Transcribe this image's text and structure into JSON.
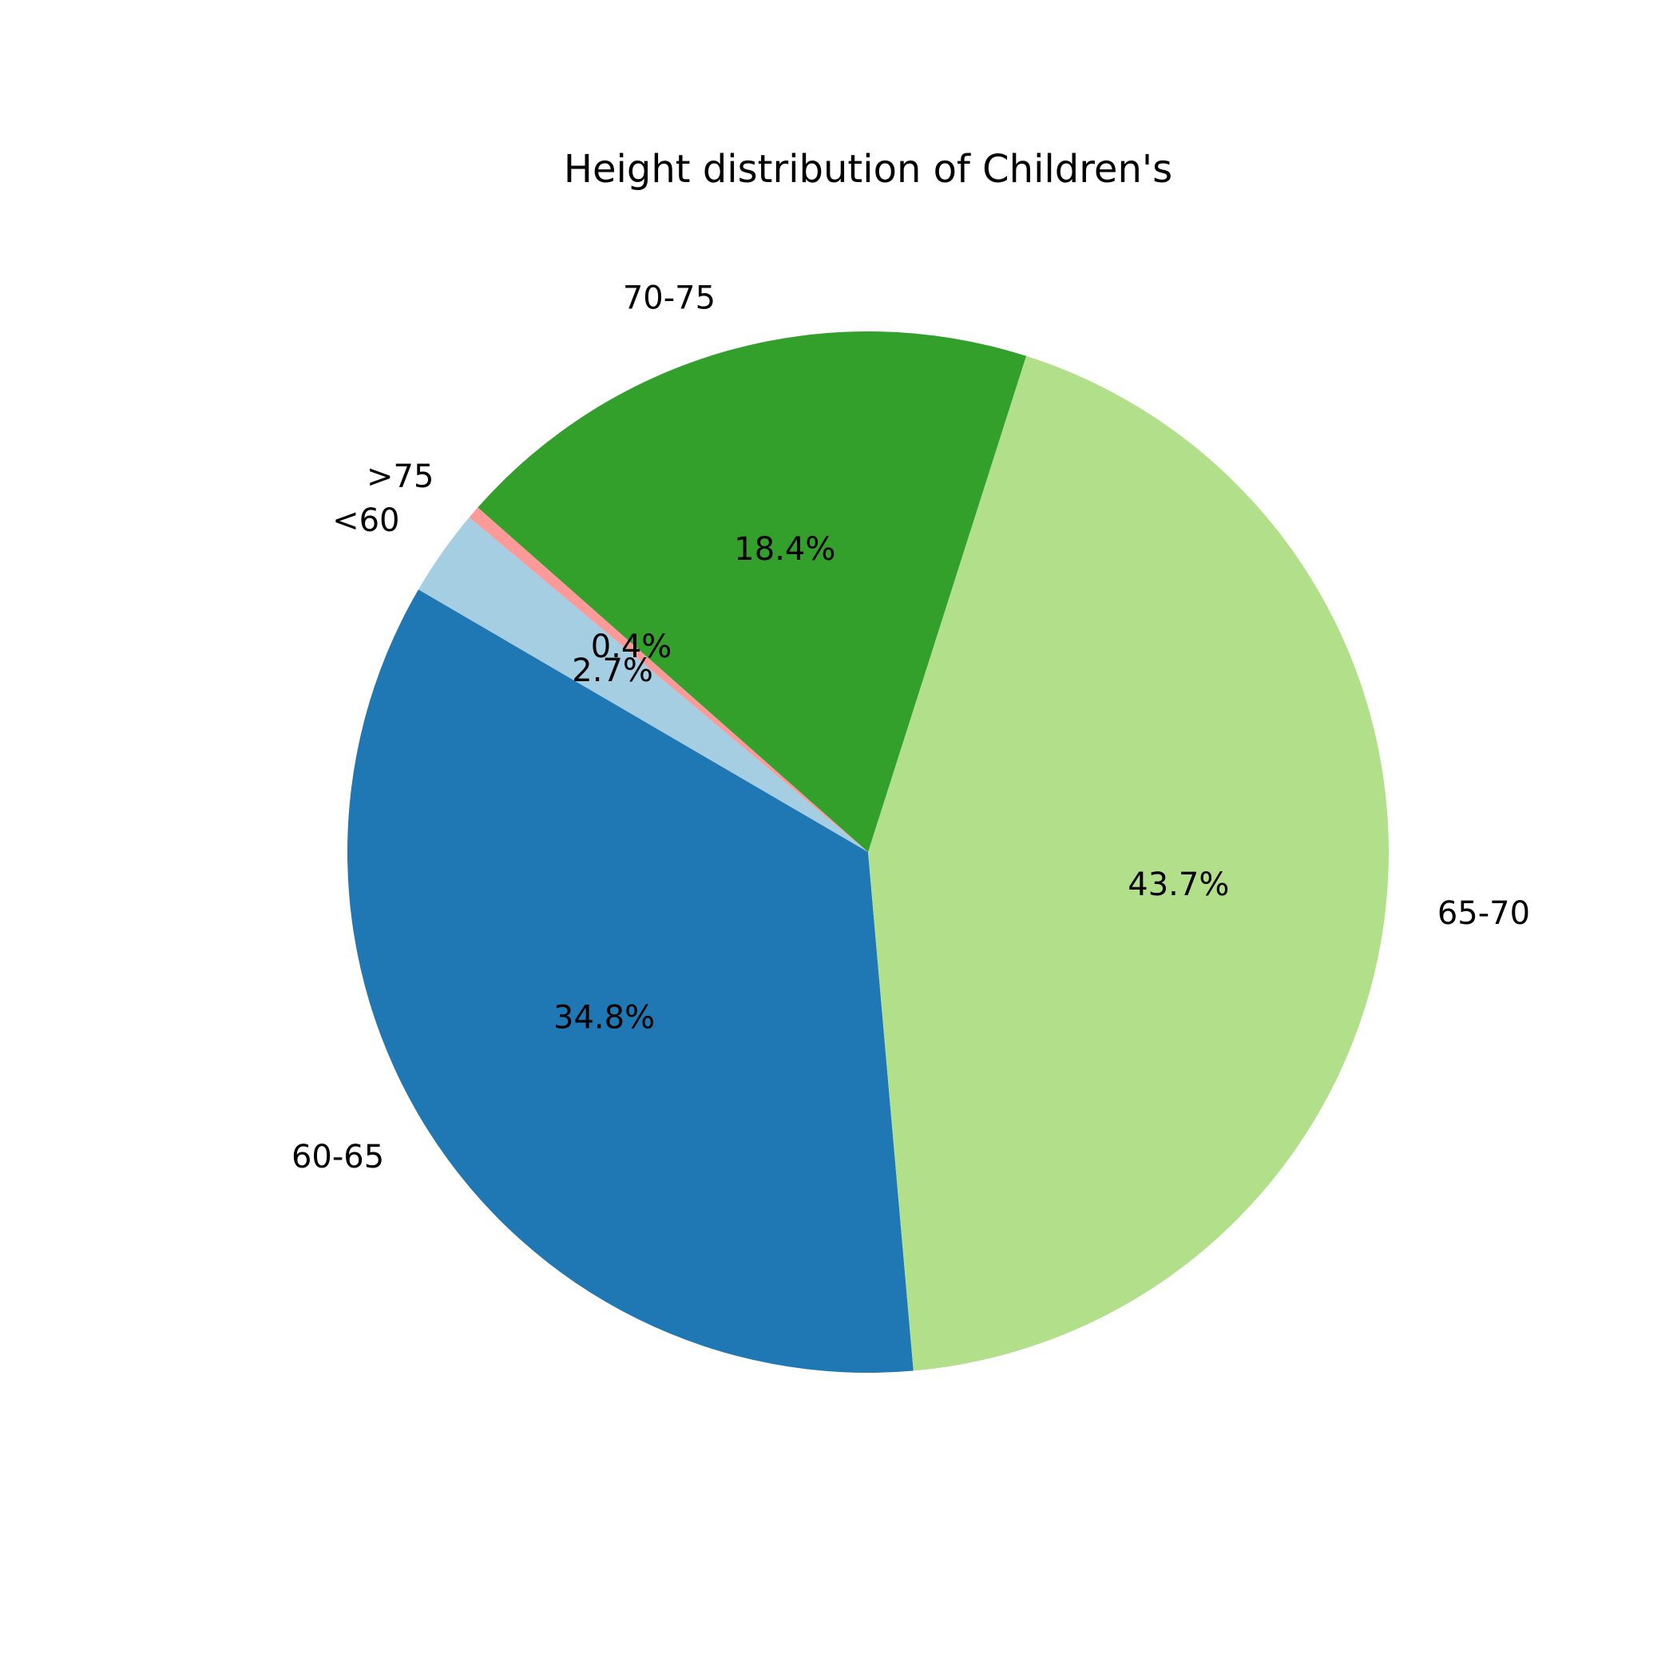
{
  "chart_data": {
    "type": "pie",
    "title": "Height distribution of Children's",
    "slices": [
      {
        "label": "<60",
        "value": 2.7,
        "pct_label": "2.7%",
        "color": "#a6cee3"
      },
      {
        "label": "60-65",
        "value": 34.8,
        "pct_label": "34.8%",
        "color": "#1f78b4"
      },
      {
        "label": "65-70",
        "value": 43.7,
        "pct_label": "43.7%",
        "color": "#b2df8a"
      },
      {
        "label": "70-75",
        "value": 18.4,
        "pct_label": "18.4%",
        "color": "#33a02c"
      },
      {
        "label": ">75",
        "value": 0.4,
        "pct_label": "0.4%",
        "color": "#fb9a99"
      }
    ],
    "start_angle_deg": 140,
    "direction": "counterclockwise",
    "legend": "none"
  }
}
